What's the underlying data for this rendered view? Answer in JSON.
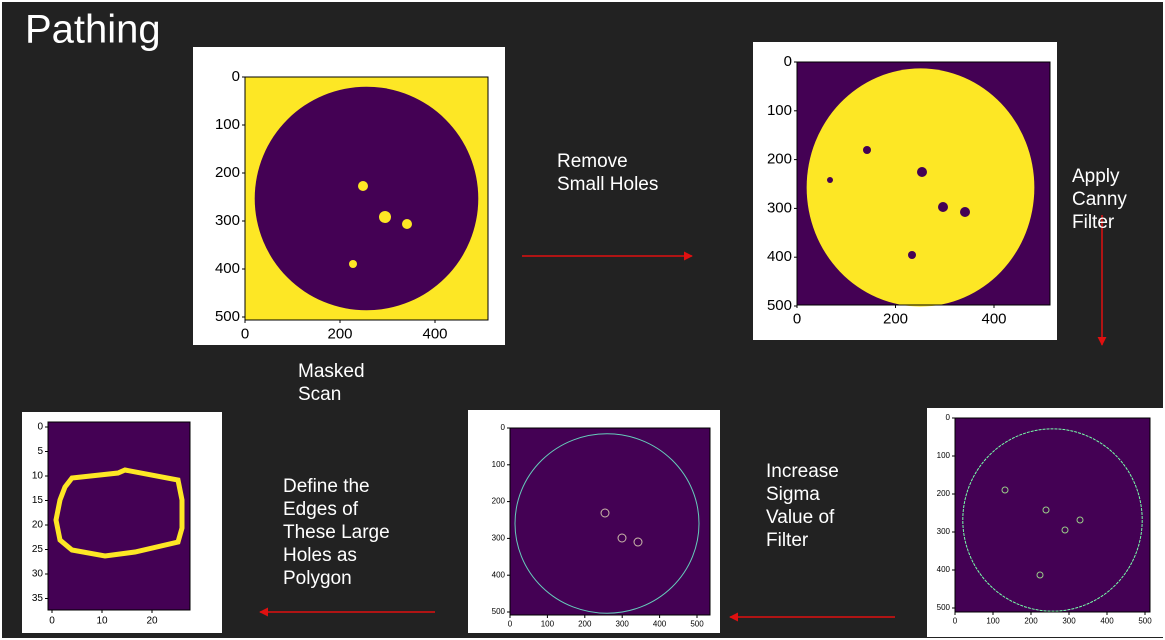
{
  "title": "Pathing",
  "captions": [
    [
      "Masked",
      "Scan"
    ],
    [
      "Remove",
      "Small Holes"
    ],
    [
      "Apply",
      "Canny",
      "Filter"
    ],
    [
      "Increase",
      "Sigma",
      "Value of",
      "Filter"
    ],
    [
      "Define the",
      "Edges of",
      "These Large",
      "Holes as",
      "Polygon"
    ]
  ],
  "panels": [
    {
      "xticks": [
        0,
        200,
        400
      ],
      "yticks": [
        0,
        100,
        200,
        300,
        400,
        500
      ]
    },
    {
      "xticks": [
        0,
        200,
        400
      ],
      "yticks": [
        0,
        100,
        200,
        300,
        400,
        500
      ]
    },
    {
      "xticks": [
        0,
        100,
        200,
        300,
        400,
        500
      ],
      "yticks": [
        0,
        100,
        200,
        300,
        400,
        500
      ]
    },
    {
      "xticks": [
        0,
        100,
        200,
        300,
        400,
        500
      ],
      "yticks": [
        0,
        100,
        200,
        300,
        400,
        500
      ]
    },
    {
      "xticks": [
        0,
        10,
        20
      ],
      "yticks": [
        0,
        5,
        10,
        15,
        20,
        25,
        30,
        35
      ]
    }
  ]
}
